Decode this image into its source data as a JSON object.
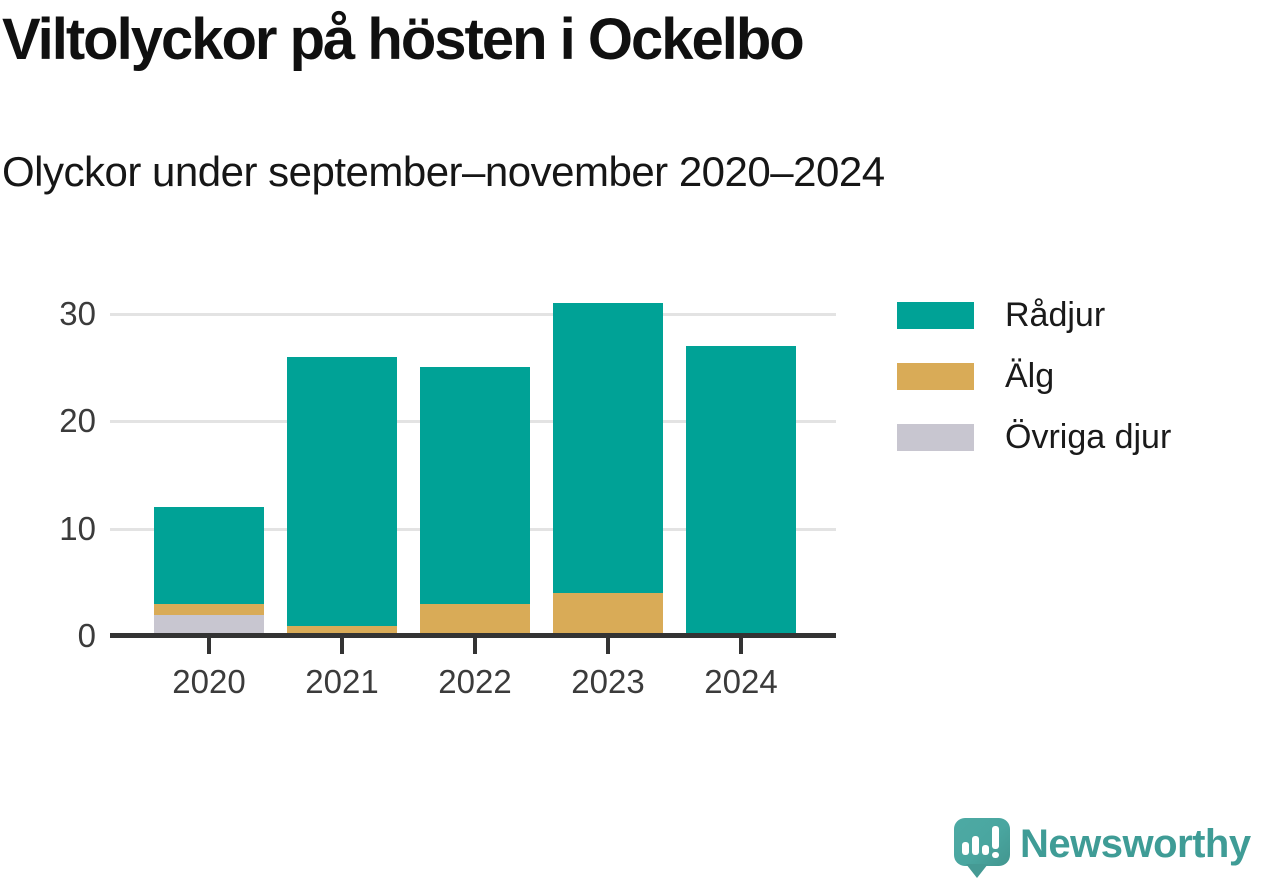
{
  "header": {
    "title": "Viltolyckor på hösten i Ockelbo",
    "subtitle": "Olyckor under september–november 2020–2024"
  },
  "chart_data": {
    "type": "bar",
    "stacked": true,
    "title": "Viltolyckor på hösten i Ockelbo",
    "subtitle": "Olyckor under september–november 2020–2024",
    "categories": [
      "2020",
      "2021",
      "2022",
      "2023",
      "2024"
    ],
    "series": [
      {
        "name": "Rådjur",
        "color": "#00a296",
        "values": [
          9,
          25,
          22,
          27,
          27
        ]
      },
      {
        "name": "Älg",
        "color": "#d9ab57",
        "values": [
          1,
          1,
          3,
          4,
          0
        ]
      },
      {
        "name": "Övriga djur",
        "color": "#c8c6d0",
        "values": [
          2,
          0,
          0,
          0,
          0
        ]
      }
    ],
    "stack_order_bottom_to_top": [
      "Övriga djur",
      "Älg",
      "Rådjur"
    ],
    "totals": [
      12,
      26,
      25,
      31,
      27
    ],
    "xlabel": "",
    "ylabel": "",
    "yticks": [
      0,
      10,
      20,
      30
    ],
    "ylim": [
      0,
      32
    ],
    "grid": "horizontal",
    "legend_position": "right"
  },
  "colors": {
    "axis": "#333333",
    "grid": "#e3e3e3",
    "tick_label": "#3b3b3b",
    "title_text": "#101010"
  },
  "footer": {
    "brand": "Newsworthy",
    "logo_color": "#4aa6a0",
    "brand_text_color": "#3f9c96"
  }
}
